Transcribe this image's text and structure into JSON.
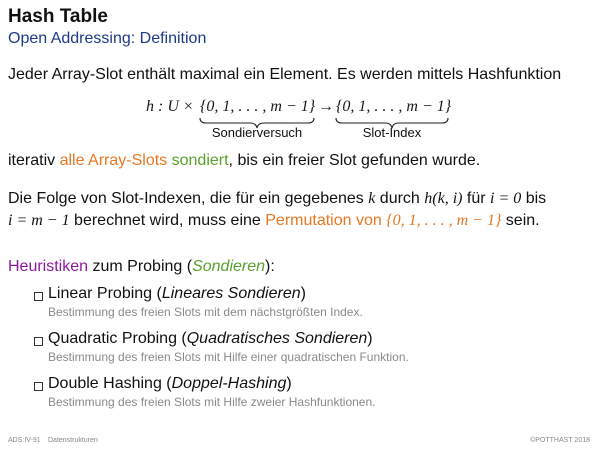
{
  "header": {
    "title": "Hash Table",
    "subtitle": "Open Addressing: Definition"
  },
  "intro": {
    "line1": "Jeder Array-Slot enthält maximal ein Element. Es werden mittels Hashfunktion"
  },
  "formula": {
    "h_label": "h : U ×",
    "domain_set": "{0, 1, . . . , m − 1}",
    "arrow": "→",
    "codomain_set": "{0, 1, . . . , m − 1}",
    "left_brace_label": "Sondierversuch",
    "right_brace_label": "Slot-Index"
  },
  "para1": {
    "pre": "iterativ ",
    "highlight1": "alle Array-Slots",
    "space": " ",
    "highlight2": "sondiert",
    "post": ", bis ein freier Slot gefunden wurde."
  },
  "para2": {
    "line1_pre": "Die Folge von Slot-Indexen, die für ein gegebenes ",
    "k": "k",
    "line1_mid": " durch ",
    "hki": "h(k, i)",
    "line1_mid2": " für ",
    "i0": "i = 0",
    "line1_post": " bis",
    "line2_math": "i = m − 1",
    "line2_mid": " berechnet wird, muss eine ",
    "perm": "Permutation von ",
    "perm_set": "{0, 1, . . . , m − 1}",
    "line2_post": " sein."
  },
  "heuristics": {
    "word": "Heuristiken",
    "mid": " zum Probing (",
    "term": "Sondieren",
    "end": "):"
  },
  "items": [
    {
      "name_pre": "Linear Probing (",
      "name_ital": "Lineares Sondieren",
      "name_post": ")",
      "desc": "Bestimmung des freien Slots mit dem nächstgrößten Index."
    },
    {
      "name_pre": "Quadratic Probing (",
      "name_ital": "Quadratisches Sondieren",
      "name_post": ")",
      "desc": "Bestimmung des freien Slots mit Hilfe einer quadratischen Funktion."
    },
    {
      "name_pre": "Double Hashing (",
      "name_ital": "Doppel-Hashing",
      "name_post": ")",
      "desc": "Bestimmung des freien Slots mit Hilfe zweier Hashfunktionen."
    }
  ],
  "footer": {
    "left": "ADS:IV-91",
    "topic": "Datenstrukturen",
    "right": "©POTTHAST 2018"
  }
}
